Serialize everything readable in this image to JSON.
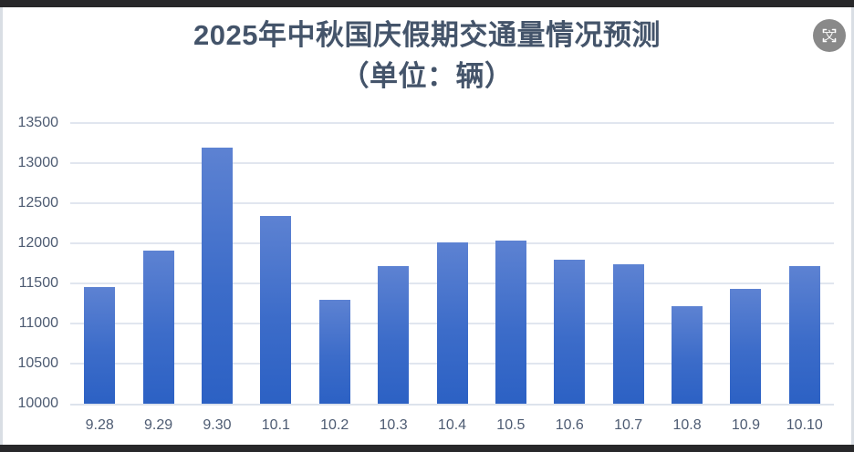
{
  "title": {
    "line1": "2025年中秋国庆假期交通量情况预测",
    "line2": "（单位：辆）"
  },
  "overlay": {
    "translate_icon": "screen-translate-icon",
    "translate_glyph": "文"
  },
  "chart_data": {
    "type": "bar",
    "title": "2025年中秋国庆假期交通量情况预测（单位：辆）",
    "categories": [
      "9.28",
      "9.29",
      "9.30",
      "10.1",
      "10.2",
      "10.3",
      "10.4",
      "10.5",
      "10.6",
      "10.7",
      "10.8",
      "10.9",
      "10.10"
    ],
    "values": [
      11460,
      11910,
      13190,
      12340,
      11300,
      11720,
      12010,
      12040,
      11800,
      11740,
      11220,
      11430,
      11720
    ],
    "xlabel": "",
    "ylabel": "",
    "ylim": [
      10000,
      13500
    ],
    "yticks": [
      10000,
      10500,
      11000,
      11500,
      12000,
      12500,
      13000,
      13500
    ],
    "grid": true,
    "legend_position": "none",
    "bar_gradient_top": "#5d82d2",
    "bar_gradient_bottom": "#2c61c4"
  },
  "colors": {
    "title_text": "#44546a",
    "axis_text": "#4d5b72",
    "gridline": "#e1e6ef",
    "frame_border": "#28282a",
    "side_border": "#d9dee4",
    "icon_circle": "#7f7f7f"
  }
}
